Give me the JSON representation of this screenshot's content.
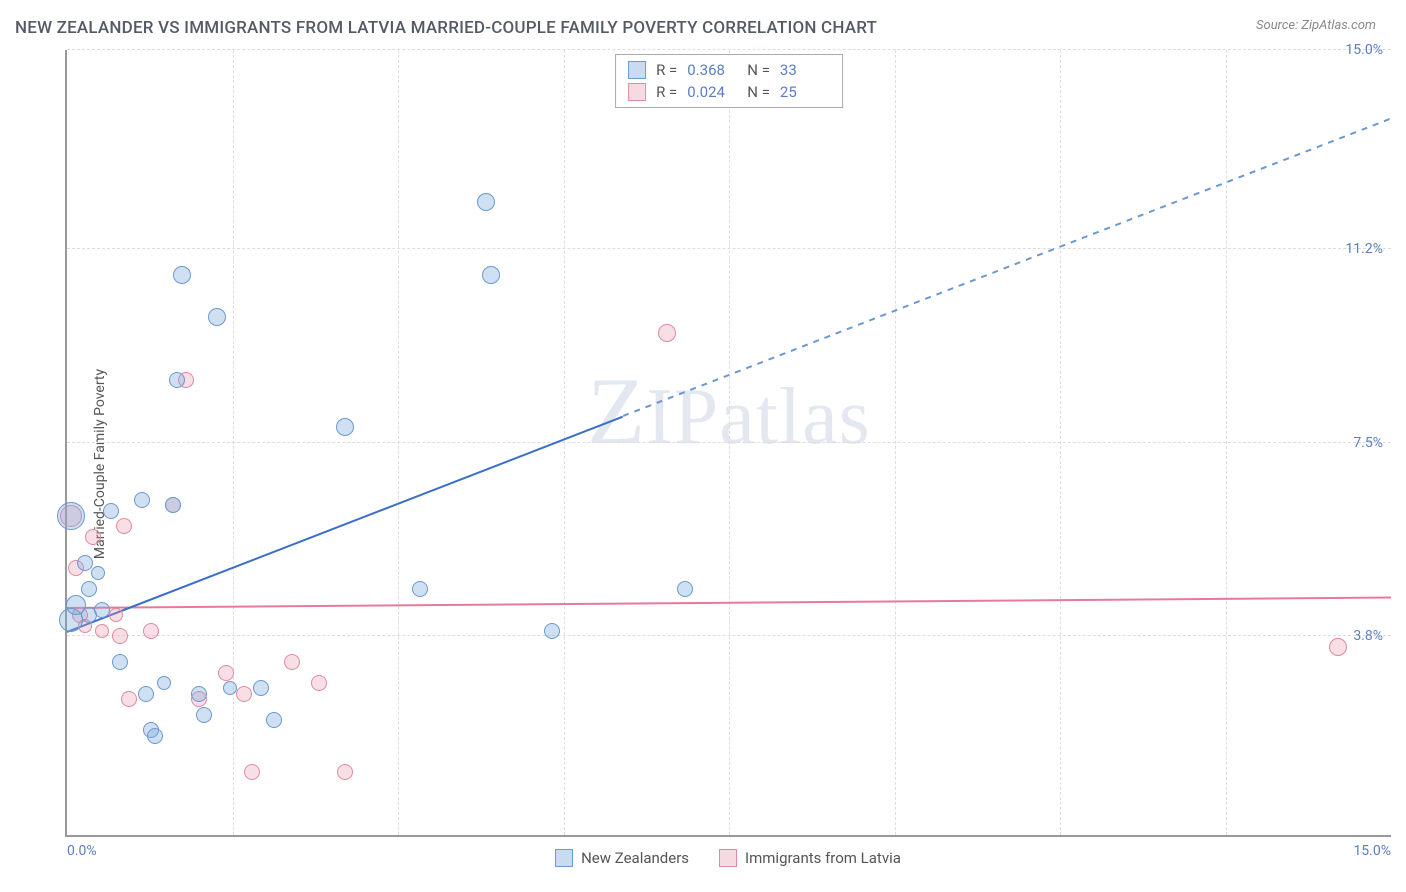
{
  "title": "NEW ZEALANDER VS IMMIGRANTS FROM LATVIA MARRIED-COUPLE FAMILY POVERTY CORRELATION CHART",
  "source": "Source: ZipAtlas.com",
  "ylabel": "Married-Couple Family Poverty",
  "watermark": {
    "z": "Z",
    "ip": "IP",
    "rest": "atlas"
  },
  "chart": {
    "type": "scatter",
    "xlim": [
      0,
      15
    ],
    "ylim": [
      0,
      15
    ],
    "xtick_labels": [
      "0.0%",
      "15.0%"
    ],
    "ytick_labels": [
      "3.8%",
      "7.5%",
      "11.2%",
      "15.0%"
    ],
    "ytick_values": [
      3.8,
      7.5,
      11.2,
      15.0
    ],
    "grid_x_values": [
      1.875,
      3.75,
      5.625,
      7.5,
      9.375,
      11.25,
      13.125
    ],
    "grid_color": "#dddddd",
    "background_color": "#ffffff",
    "axis_color": "#999999",
    "tick_color": "#5b7fbf",
    "label_fontsize": 14,
    "title_fontsize": 17,
    "title_color": "#555b66"
  },
  "series_a": {
    "name": "New Zealanders",
    "color_fill": "rgba(120,165,220,0.35)",
    "color_stroke": "#6a99d0",
    "R": "0.368",
    "N": "33",
    "points": [
      {
        "x": 0.05,
        "y": 6.1,
        "r": 14
      },
      {
        "x": 0.05,
        "y": 4.1,
        "r": 12
      },
      {
        "x": 0.1,
        "y": 4.4,
        "r": 10
      },
      {
        "x": 0.2,
        "y": 5.2,
        "r": 8
      },
      {
        "x": 0.25,
        "y": 4.7,
        "r": 8
      },
      {
        "x": 0.25,
        "y": 4.2,
        "r": 8
      },
      {
        "x": 0.35,
        "y": 5.0,
        "r": 7
      },
      {
        "x": 0.4,
        "y": 4.3,
        "r": 8
      },
      {
        "x": 0.5,
        "y": 6.2,
        "r": 8
      },
      {
        "x": 0.6,
        "y": 3.3,
        "r": 8
      },
      {
        "x": 0.85,
        "y": 6.4,
        "r": 8
      },
      {
        "x": 0.9,
        "y": 2.7,
        "r": 8
      },
      {
        "x": 0.95,
        "y": 2.0,
        "r": 8
      },
      {
        "x": 1.0,
        "y": 1.9,
        "r": 8
      },
      {
        "x": 1.1,
        "y": 2.9,
        "r": 7
      },
      {
        "x": 1.2,
        "y": 6.3,
        "r": 8
      },
      {
        "x": 1.25,
        "y": 8.7,
        "r": 8
      },
      {
        "x": 1.3,
        "y": 10.7,
        "r": 9
      },
      {
        "x": 1.5,
        "y": 2.7,
        "r": 8
      },
      {
        "x": 1.55,
        "y": 2.3,
        "r": 8
      },
      {
        "x": 1.7,
        "y": 9.9,
        "r": 9
      },
      {
        "x": 1.85,
        "y": 2.8,
        "r": 7
      },
      {
        "x": 2.2,
        "y": 2.8,
        "r": 8
      },
      {
        "x": 2.35,
        "y": 2.2,
        "r": 8
      },
      {
        "x": 3.15,
        "y": 7.8,
        "r": 9
      },
      {
        "x": 4.0,
        "y": 4.7,
        "r": 8
      },
      {
        "x": 4.8,
        "y": 10.7,
        "r": 9
      },
      {
        "x": 4.75,
        "y": 12.1,
        "r": 9
      },
      {
        "x": 5.5,
        "y": 3.9,
        "r": 8
      },
      {
        "x": 7.0,
        "y": 4.7,
        "r": 8
      }
    ],
    "trend": {
      "x1": 0,
      "y1": 3.9,
      "x2": 15,
      "y2": 13.7,
      "solid_until_x": 6.3,
      "line_color": "#3a6fc9"
    }
  },
  "series_b": {
    "name": "Immigrants from Latvia",
    "color_fill": "rgba(230,150,170,0.3)",
    "color_stroke": "#e08aa0",
    "R": "0.024",
    "N": "25",
    "points": [
      {
        "x": 0.05,
        "y": 6.1,
        "r": 11
      },
      {
        "x": 0.1,
        "y": 5.1,
        "r": 8
      },
      {
        "x": 0.15,
        "y": 4.2,
        "r": 8
      },
      {
        "x": 0.2,
        "y": 4.0,
        "r": 7
      },
      {
        "x": 0.3,
        "y": 5.7,
        "r": 8
      },
      {
        "x": 0.4,
        "y": 3.9,
        "r": 7
      },
      {
        "x": 0.55,
        "y": 4.2,
        "r": 7
      },
      {
        "x": 0.6,
        "y": 3.8,
        "r": 8
      },
      {
        "x": 0.65,
        "y": 5.9,
        "r": 8
      },
      {
        "x": 0.7,
        "y": 2.6,
        "r": 8
      },
      {
        "x": 0.95,
        "y": 3.9,
        "r": 8
      },
      {
        "x": 1.2,
        "y": 6.3,
        "r": 8
      },
      {
        "x": 1.35,
        "y": 8.7,
        "r": 8
      },
      {
        "x": 1.5,
        "y": 2.6,
        "r": 8
      },
      {
        "x": 1.8,
        "y": 3.1,
        "r": 8
      },
      {
        "x": 2.0,
        "y": 2.7,
        "r": 8
      },
      {
        "x": 2.1,
        "y": 1.2,
        "r": 8
      },
      {
        "x": 2.55,
        "y": 3.3,
        "r": 8
      },
      {
        "x": 2.85,
        "y": 2.9,
        "r": 8
      },
      {
        "x": 3.15,
        "y": 1.2,
        "r": 8
      },
      {
        "x": 6.8,
        "y": 9.6,
        "r": 9
      },
      {
        "x": 14.4,
        "y": 3.6,
        "r": 9
      }
    ],
    "trend": {
      "x1": 0,
      "y1": 4.35,
      "x2": 15,
      "y2": 4.55,
      "line_color": "#e77a9a"
    }
  },
  "legend_top": {
    "R_label": "R =",
    "N_label": "N ="
  },
  "legend_bottom": {
    "a": "New Zealanders",
    "b": "Immigrants from Latvia"
  }
}
